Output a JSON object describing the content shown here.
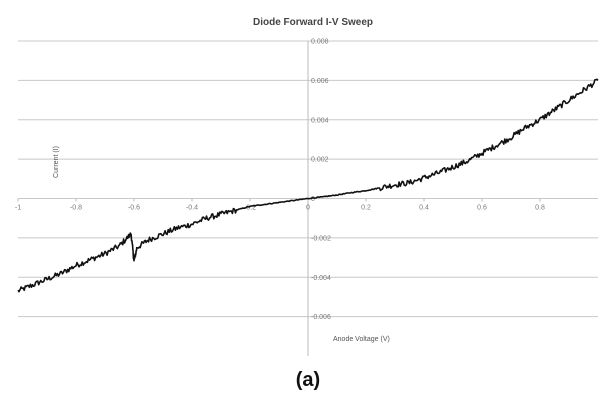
{
  "chart_data": {
    "type": "line",
    "title": "Diode Forward I-V Sweep",
    "xlabel": "Anode Voltage (V)",
    "ylabel": "Current (I)",
    "xlim": [
      -1,
      1
    ],
    "ylim": [
      -0.008,
      0.008
    ],
    "x_ticks": [
      "-1",
      "-0.8",
      "-0.6",
      "-0.4",
      "-0.2",
      "0",
      "0.2",
      "0.4",
      "0.6",
      "0.8"
    ],
    "y_ticks": [
      "0.008",
      "0.006",
      "0.004",
      "0.002",
      "0",
      "-0.002",
      "-0.004",
      "-0.006"
    ],
    "grid": "horizontal",
    "legend": "none",
    "series": [
      {
        "x": [
          -1.0,
          -0.95,
          -0.9,
          -0.85,
          -0.8,
          -0.75,
          -0.7,
          -0.65,
          -0.61,
          -0.6,
          -0.59,
          -0.55,
          -0.5,
          -0.45,
          -0.4,
          -0.35,
          -0.3,
          -0.25,
          -0.2,
          -0.15,
          -0.1,
          -0.05,
          0.0,
          0.05,
          0.1,
          0.15,
          0.2,
          0.25,
          0.3,
          0.35,
          0.4,
          0.45,
          0.5,
          0.55,
          0.6,
          0.65,
          0.7,
          0.75,
          0.8,
          0.85,
          0.9,
          0.95,
          1.0
        ],
        "y": [
          -0.0047,
          -0.0044,
          -0.0041,
          -0.0038,
          -0.0034,
          -0.0031,
          -0.0028,
          -0.0024,
          -0.0018,
          -0.0032,
          -0.0025,
          -0.0021,
          -0.0018,
          -0.0015,
          -0.0013,
          -0.001,
          -0.0008,
          -0.0006,
          -0.0004,
          -0.0003,
          -0.0002,
          -0.0001,
          0.0,
          8e-05,
          0.00018,
          0.0003,
          0.0004,
          0.00055,
          0.0007,
          0.0008,
          0.00105,
          0.0013,
          0.0016,
          0.0019,
          0.0023,
          0.0027,
          0.0031,
          0.0036,
          0.004,
          0.0045,
          0.005,
          0.0055,
          0.006
        ]
      }
    ]
  },
  "caption": "(a)",
  "colors": {
    "line": "#111111",
    "grid": "#c8c8c8",
    "axis": "#bbbbbb"
  }
}
